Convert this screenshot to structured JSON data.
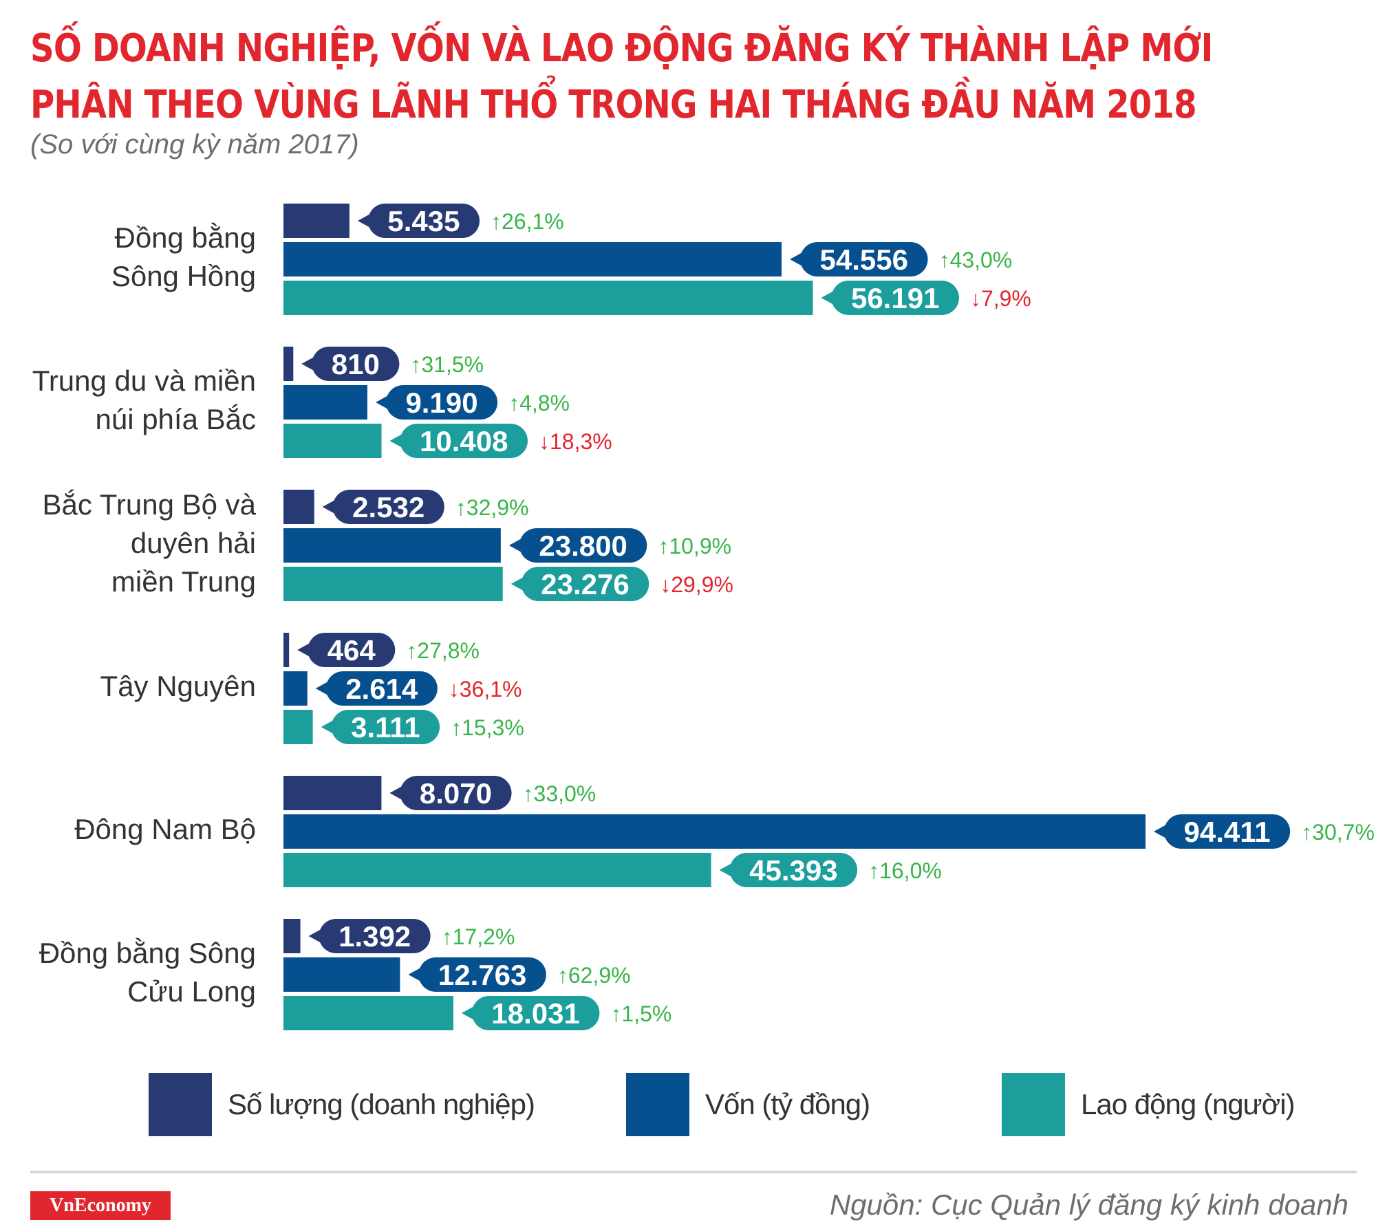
{
  "title_line1": "SỐ DOANH NGHIỆP, VỐN VÀ LAO ĐỘNG ĐĂNG KÝ THÀNH LẬP MỚI",
  "title_line2": "PHÂN THEO VÙNG LÃNH THỔ TRONG HAI THÁNG ĐẦU NĂM 2018",
  "subtitle": "(So với cùng kỳ năm 2017)",
  "source": "Nguồn: Cục Quản lý đăng ký kinh doanh",
  "logo": "VnEconomy",
  "colors": {
    "title": "#e2262d",
    "increase": "#39b54a",
    "decrease": "#e2262d"
  },
  "chart_data": {
    "type": "bar",
    "orientation": "horizontal",
    "categories": [
      [
        "Đồng bằng",
        "Sông Hồng"
      ],
      [
        "Trung du và miền",
        "núi phía Bắc"
      ],
      [
        "Bắc Trung Bộ và",
        "duyên hải",
        "miền Trung"
      ],
      [
        "Tây Nguyên"
      ],
      [
        "Đông Nam Bộ"
      ],
      [
        "Đồng bằng Sông",
        "Cửu Long"
      ]
    ],
    "series": [
      {
        "name": "Số lượng (doanh nghiệp)",
        "color": "#283a73",
        "values": [
          5435,
          810,
          2532,
          464,
          8070,
          1392
        ],
        "labels": [
          "5.435",
          "810",
          "2.532",
          "464",
          "8.070",
          "1.392"
        ],
        "changes": [
          "26,1%",
          "31,5%",
          "32,9%",
          "27,8%",
          "33,0%",
          "17,2%"
        ],
        "direction": [
          "up",
          "up",
          "up",
          "up",
          "up",
          "up"
        ],
        "full_scale": 71000
      },
      {
        "name": "Vốn (tỷ đồng)",
        "color": "#07508f",
        "values": [
          54556,
          9190,
          23800,
          2614,
          94411,
          12763
        ],
        "labels": [
          "54.556",
          "9.190",
          "23.800",
          "2.614",
          "94.411",
          "12.763"
        ],
        "changes": [
          "43,0%",
          "4,8%",
          "10,9%",
          "36,1%",
          "30,7%",
          "62,9%"
        ],
        "direction": [
          "up",
          "up",
          "up",
          "down",
          "up",
          "up"
        ],
        "full_scale": 94411
      },
      {
        "name": "Lao động (người)",
        "color": "#1b9e9c",
        "values": [
          56191,
          10408,
          23276,
          3111,
          45393,
          18031
        ],
        "labels": [
          "56.191",
          "10.408",
          "23.276",
          "3.111",
          "45.393",
          "18.031"
        ],
        "changes": [
          "7,9%",
          "18,3%",
          "29,9%",
          "15,3%",
          "16,0%",
          "1,5%"
        ],
        "direction": [
          "down",
          "down",
          "down",
          "up",
          "up",
          "up"
        ],
        "full_scale": 91500
      }
    ],
    "legend": [
      "Số lượng (doanh nghiệp)",
      "Vốn (tỷ đồng)",
      "Lao động (người)"
    ],
    "legend_position": "bottom",
    "grid": false
  }
}
